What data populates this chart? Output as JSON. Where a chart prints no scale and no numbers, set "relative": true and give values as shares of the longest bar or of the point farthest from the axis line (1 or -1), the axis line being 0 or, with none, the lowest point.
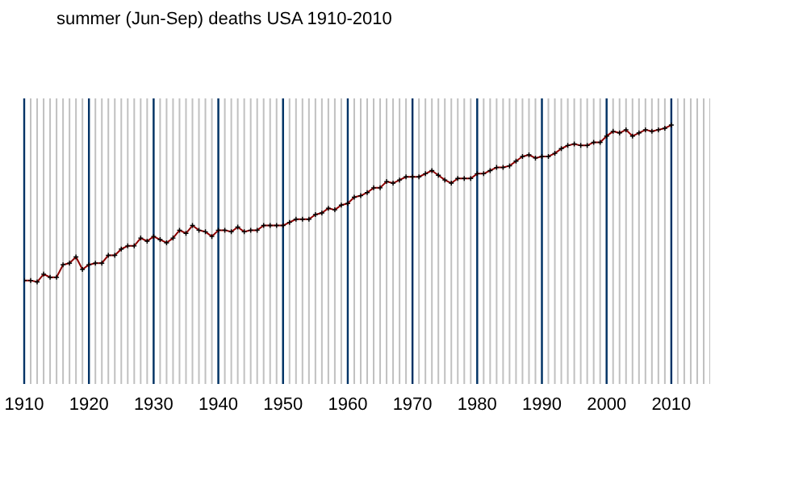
{
  "chart_data": {
    "type": "line",
    "title": "summer (Jun-Sep) deaths USA 1910-2010",
    "relative": true,
    "x": [
      1910,
      1911,
      1912,
      1913,
      1914,
      1915,
      1916,
      1917,
      1918,
      1919,
      1920,
      1921,
      1922,
      1923,
      1924,
      1925,
      1926,
      1927,
      1928,
      1929,
      1930,
      1931,
      1932,
      1933,
      1934,
      1935,
      1936,
      1937,
      1938,
      1939,
      1940,
      1941,
      1942,
      1943,
      1944,
      1945,
      1946,
      1947,
      1948,
      1949,
      1950,
      1951,
      1952,
      1953,
      1954,
      1955,
      1956,
      1957,
      1958,
      1959,
      1960,
      1961,
      1962,
      1963,
      1964,
      1965,
      1966,
      1967,
      1968,
      1969,
      1970,
      1971,
      1972,
      1973,
      1974,
      1975,
      1976,
      1977,
      1978,
      1979,
      1980,
      1981,
      1982,
      1983,
      1984,
      1985,
      1986,
      1987,
      1988,
      1989,
      1990,
      1991,
      1992,
      1993,
      1994,
      1995,
      1996,
      1997,
      1998,
      1999,
      2000,
      2001,
      2002,
      2003,
      2004,
      2005,
      2006,
      2007,
      2008,
      2009,
      2010
    ],
    "series": [
      {
        "color": "#8b0000",
        "values": [
          0.01,
          0.01,
          0,
          0.05,
          0.03,
          0.03,
          0.11,
          0.12,
          0.16,
          0.08,
          0.11,
          0.12,
          0.12,
          0.17,
          0.17,
          0.21,
          0.23,
          0.23,
          0.28,
          0.26,
          0.29,
          0.27,
          0.25,
          0.28,
          0.33,
          0.31,
          0.36,
          0.33,
          0.32,
          0.29,
          0.33,
          0.33,
          0.32,
          0.35,
          0.32,
          0.33,
          0.33,
          0.36,
          0.36,
          0.36,
          0.36,
          0.38,
          0.4,
          0.4,
          0.4,
          0.43,
          0.44,
          0.47,
          0.46,
          0.49,
          0.5,
          0.54,
          0.55,
          0.57,
          0.6,
          0.6,
          0.64,
          0.63,
          0.65,
          0.67,
          0.67,
          0.67,
          0.69,
          0.71,
          0.68,
          0.65,
          0.63,
          0.66,
          0.66,
          0.66,
          0.69,
          0.69,
          0.71,
          0.73,
          0.73,
          0.74,
          0.77,
          0.8,
          0.81,
          0.79,
          0.8,
          0.8,
          0.82,
          0.85,
          0.87,
          0.88,
          0.87,
          0.87,
          0.89,
          0.89,
          0.93,
          0.96,
          0.95,
          0.97,
          0.93,
          0.95,
          0.97,
          0.96,
          0.97,
          0.98,
          1
        ]
      }
    ],
    "xlim": [
      1910,
      2016
    ],
    "xticks": [
      1910,
      1920,
      1930,
      1940,
      1950,
      1960,
      1970,
      1980,
      1990,
      2000,
      2010
    ],
    "grid": "x",
    "legend": false,
    "marker": "cross"
  }
}
